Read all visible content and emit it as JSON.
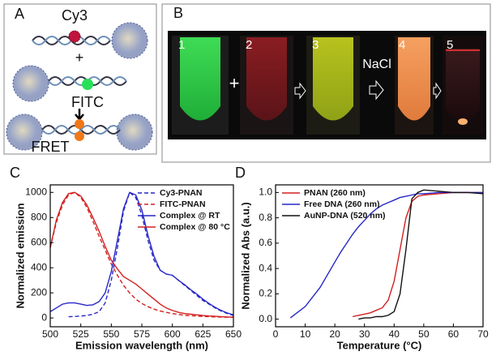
{
  "panel_a": {
    "label": "A",
    "top_dye": "Cy3",
    "plus": "+",
    "middle_dye": "FITC",
    "result": "FRET"
  },
  "panel_b": {
    "label": "B",
    "tubes": [
      "1",
      "2",
      "3",
      "4",
      "5"
    ],
    "plus": "+",
    "salt": "NaCl"
  },
  "chart_data": [
    {
      "type": "line",
      "panel_label": "C",
      "x_label": "Emission wavelength (nm)",
      "y_label": "Normalized emission",
      "x": [
        500,
        505,
        510,
        515,
        520,
        525,
        530,
        535,
        540,
        545,
        550,
        555,
        560,
        565,
        570,
        575,
        580,
        585,
        590,
        595,
        600,
        605,
        610,
        615,
        620,
        625,
        630,
        635,
        640,
        645,
        650
      ],
      "series": [
        {
          "name": "Cy3-PNAN",
          "color": "#2727c8",
          "dash": true,
          "values": [
            null,
            null,
            null,
            10,
            12,
            15,
            20,
            30,
            50,
            120,
            300,
            560,
            850,
            1000,
            960,
            820,
            620,
            460,
            380,
            350,
            340,
            300,
            260,
            220,
            180,
            140,
            110,
            80,
            55,
            35,
            20
          ]
        },
        {
          "name": "FITC-PNAN",
          "color": "#d42020",
          "dash": true,
          "values": [
            560,
            760,
            900,
            980,
            1000,
            960,
            880,
            770,
            650,
            540,
            430,
            340,
            260,
            200,
            150,
            115,
            90,
            70,
            55,
            45,
            35,
            28,
            22,
            18,
            15,
            12,
            10,
            8,
            7,
            6,
            5
          ]
        },
        {
          "name": "Complex @ RT",
          "color": "#2727c8",
          "dash": false,
          "values": [
            50,
            80,
            110,
            120,
            120,
            110,
            100,
            105,
            130,
            200,
            370,
            620,
            870,
            1000,
            980,
            860,
            660,
            490,
            380,
            350,
            340,
            300,
            265,
            225,
            190,
            150,
            115,
            85,
            60,
            40,
            25
          ]
        },
        {
          "name": "Complex @ 80 °C",
          "color": "#d42020",
          "dash": false,
          "values": [
            560,
            780,
            920,
            990,
            1000,
            970,
            900,
            800,
            690,
            570,
            460,
            390,
            330,
            300,
            270,
            230,
            190,
            150,
            110,
            80,
            60,
            45,
            35,
            30,
            25,
            20,
            16,
            13,
            10,
            8,
            6
          ]
        }
      ],
      "xlim": [
        500,
        650
      ],
      "xticks": [
        500,
        525,
        550,
        575,
        600,
        625,
        650
      ],
      "ylim": [
        -70,
        1060
      ],
      "yticks": [
        0,
        200,
        400,
        600,
        800,
        1000
      ],
      "legend": "upper right"
    },
    {
      "type": "line",
      "panel_label": "D",
      "x_label": "Temperature (°C)",
      "y_label": "Normalized Abs (a.u.)",
      "x": [
        5,
        10,
        15,
        20,
        22,
        24,
        26,
        28,
        30,
        32,
        34,
        36,
        38,
        40,
        42,
        44,
        46,
        48,
        50,
        55,
        60,
        65,
        70
      ],
      "series": [
        {
          "name": "PNAN (260 nm)",
          "color": "#d42020",
          "dash": false,
          "values": [
            null,
            null,
            null,
            null,
            null,
            null,
            0.02,
            0.03,
            0.04,
            0.05,
            0.07,
            0.09,
            0.15,
            0.3,
            0.55,
            0.8,
            0.93,
            0.97,
            0.98,
            0.99,
            1.0,
            1.0,
            1.0
          ]
        },
        {
          "name": "Free DNA (260 nm)",
          "color": "#2727c8",
          "dash": false,
          "values": [
            0.01,
            0.1,
            0.25,
            0.45,
            0.53,
            0.6,
            0.67,
            0.73,
            0.78,
            0.83,
            0.87,
            0.9,
            0.92,
            0.94,
            0.96,
            0.97,
            0.98,
            0.99,
            0.99,
            1.0,
            1.0,
            1.0,
            1.0
          ]
        },
        {
          "name": "AuNP-DNA (520 nm)",
          "color": "#111111",
          "dash": false,
          "values": [
            null,
            null,
            null,
            null,
            null,
            null,
            null,
            0.0,
            0.01,
            0.01,
            0.02,
            0.02,
            0.03,
            0.06,
            0.2,
            0.55,
            0.95,
            1.0,
            1.02,
            1.01,
            1.0,
            1.0,
            0.99
          ]
        }
      ],
      "xlim": [
        0,
        70
      ],
      "xticks": [
        0,
        10,
        20,
        30,
        40,
        50,
        60,
        70
      ],
      "ylim": [
        -0.06,
        1.06
      ],
      "yticks": [
        {
          "value": 0,
          "label": "0.0"
        },
        {
          "value": 0.2,
          "label": "0.2"
        },
        {
          "value": 0.4,
          "label": "0.4"
        },
        {
          "value": 0.6,
          "label": "0.6"
        },
        {
          "value": 0.8,
          "label": "0.8"
        },
        {
          "value": 1,
          "label": "1.0"
        }
      ],
      "legend": "upper left"
    }
  ]
}
